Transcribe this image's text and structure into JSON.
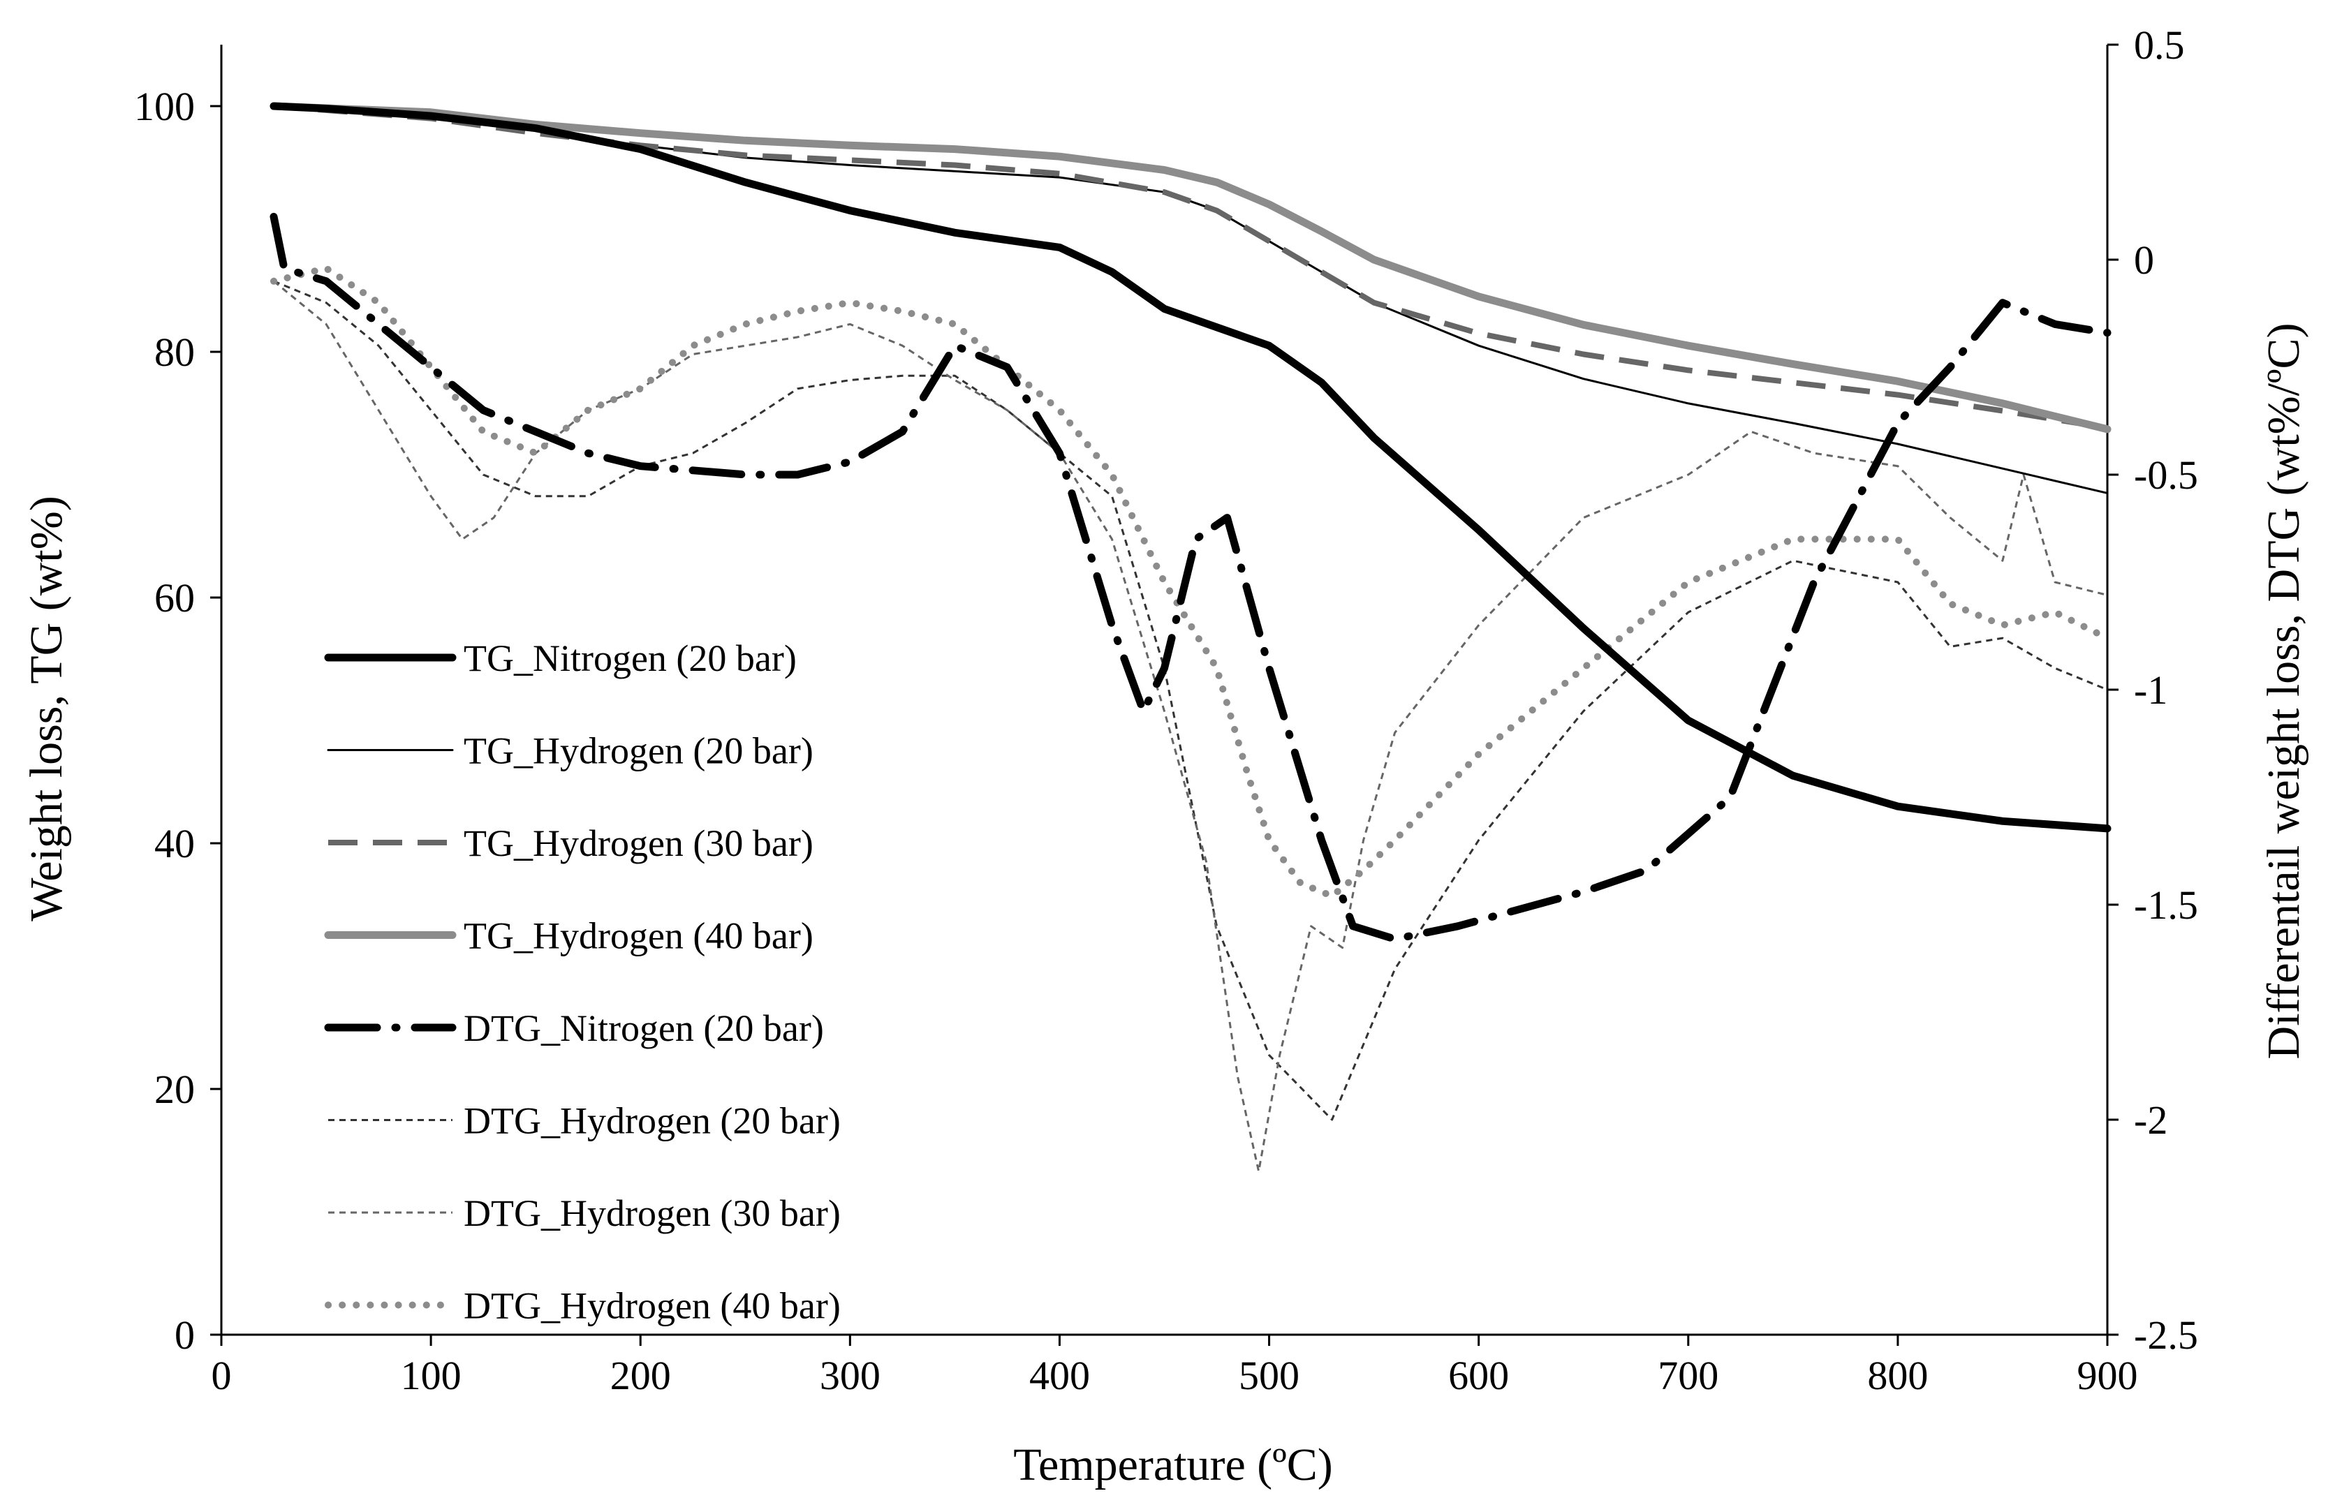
{
  "chart_data": {
    "type": "line",
    "title": "",
    "xlabel": "Temperature (ºC)",
    "ylabel_left": "Weight loss, TG (wt%)",
    "ylabel_right": "Differentail weight loss, DTG (wt%/ºC)",
    "xlim": [
      0,
      900
    ],
    "ylim_left": [
      0,
      105
    ],
    "ylim_right": [
      -2.5,
      0.5
    ],
    "x_ticks": [
      0,
      100,
      200,
      300,
      400,
      500,
      600,
      700,
      800,
      900
    ],
    "y_left_ticks": [
      0,
      20,
      40,
      60,
      80,
      100
    ],
    "y_right_ticks": [
      0.5,
      0,
      -0.5,
      -1,
      -1.5,
      -2,
      -2.5
    ],
    "y_right_tick_labels": [
      "0.5",
      "0",
      "-0.5",
      "-1",
      "-1.5",
      "-2",
      "-2.5"
    ],
    "grid": false,
    "legend_position": "left-middle",
    "series": [
      {
        "name": "TG_Nitrogen (20 bar)",
        "axis": "left",
        "color": "#000000",
        "style": "solid-thick",
        "x": [
          25,
          50,
          100,
          150,
          200,
          250,
          300,
          350,
          400,
          425,
          450,
          500,
          525,
          550,
          600,
          650,
          700,
          750,
          800,
          850,
          900
        ],
        "y": [
          100,
          99.8,
          99.2,
          98.2,
          96.5,
          93.8,
          91.5,
          89.7,
          88.5,
          86.5,
          83.5,
          80.5,
          77.5,
          73,
          65.5,
          57.5,
          50,
          45.5,
          43,
          41.8,
          41.2
        ]
      },
      {
        "name": "TG_Hydrogen (20 bar)",
        "axis": "left",
        "color": "#000000",
        "style": "solid-thin",
        "x": [
          25,
          100,
          150,
          200,
          250,
          300,
          350,
          400,
          450,
          475,
          500,
          525,
          550,
          600,
          650,
          700,
          750,
          800,
          850,
          900
        ],
        "y": [
          100,
          99.2,
          98,
          96.8,
          95.8,
          95.2,
          94.7,
          94.2,
          93,
          91.5,
          89,
          86.5,
          84,
          80.5,
          77.8,
          75.8,
          74.2,
          72.5,
          70.5,
          68.5
        ]
      },
      {
        "name": "TG_Hydrogen (30 bar)",
        "axis": "left",
        "color": "#666666",
        "style": "dashed",
        "x": [
          25,
          100,
          150,
          200,
          250,
          300,
          350,
          400,
          450,
          475,
          500,
          525,
          550,
          600,
          650,
          700,
          750,
          800,
          850,
          900
        ],
        "y": [
          100,
          99,
          97.8,
          96.8,
          96,
          95.6,
          95.2,
          94.5,
          93,
          91.5,
          89,
          86.5,
          84,
          81.5,
          79.8,
          78.5,
          77.5,
          76.5,
          75.2,
          73.8
        ]
      },
      {
        "name": "TG_Hydrogen (40 bar)",
        "axis": "left",
        "color": "#8c8c8c",
        "style": "solid-thick",
        "x": [
          25,
          100,
          150,
          200,
          250,
          300,
          350,
          400,
          450,
          475,
          500,
          525,
          550,
          600,
          650,
          700,
          750,
          800,
          850,
          900
        ],
        "y": [
          100,
          99.5,
          98.5,
          97.8,
          97.2,
          96.8,
          96.5,
          95.9,
          94.8,
          93.8,
          92,
          89.8,
          87.5,
          84.5,
          82.2,
          80.5,
          79,
          77.6,
          75.8,
          73.7
        ]
      },
      {
        "name": "DTG_Nitrogen (20 bar)",
        "axis": "right",
        "color": "#000000",
        "style": "dash-dot-thick",
        "x": [
          25,
          30,
          50,
          75,
          100,
          125,
          150,
          175,
          200,
          225,
          250,
          275,
          300,
          325,
          350,
          375,
          400,
          425,
          440,
          450,
          465,
          480,
          500,
          525,
          540,
          560,
          590,
          650,
          680,
          720,
          760,
          800,
          825,
          850,
          875,
          900
        ],
        "y": [
          0.1,
          -0.02,
          -0.05,
          -0.15,
          -0.25,
          -0.35,
          -0.4,
          -0.45,
          -0.48,
          -0.49,
          -0.5,
          -0.5,
          -0.47,
          -0.4,
          -0.2,
          -0.25,
          -0.45,
          -0.85,
          -1.05,
          -0.95,
          -0.65,
          -0.6,
          -0.95,
          -1.35,
          -1.55,
          -1.58,
          -1.55,
          -1.47,
          -1.42,
          -1.25,
          -0.75,
          -0.38,
          -0.25,
          -0.1,
          -0.15,
          -0.17
        ]
      },
      {
        "name": "DTG_Hydrogen (20 bar)",
        "axis": "right",
        "color": "#333333",
        "style": "fine-dash",
        "x": [
          25,
          50,
          75,
          100,
          125,
          150,
          175,
          200,
          225,
          250,
          275,
          300,
          325,
          350,
          375,
          400,
          425,
          450,
          475,
          500,
          530,
          560,
          600,
          650,
          700,
          750,
          800,
          825,
          850,
          875,
          900
        ],
        "y": [
          -0.05,
          -0.1,
          -0.2,
          -0.35,
          -0.5,
          -0.55,
          -0.55,
          -0.48,
          -0.45,
          -0.38,
          -0.3,
          -0.28,
          -0.27,
          -0.27,
          -0.35,
          -0.45,
          -0.55,
          -0.95,
          -1.55,
          -1.85,
          -2.0,
          -1.65,
          -1.35,
          -1.05,
          -0.82,
          -0.7,
          -0.75,
          -0.9,
          -0.88,
          -0.95,
          -1.0
        ]
      },
      {
        "name": "DTG_Hydrogen (30 bar)",
        "axis": "right",
        "color": "#666666",
        "style": "fine-dash",
        "x": [
          25,
          50,
          75,
          100,
          115,
          130,
          150,
          175,
          200,
          225,
          250,
          275,
          300,
          325,
          350,
          375,
          400,
          425,
          450,
          470,
          485,
          495,
          505,
          520,
          535,
          545,
          560,
          600,
          650,
          700,
          730,
          760,
          800,
          825,
          850,
          860,
          875,
          900
        ],
        "y": [
          -0.05,
          -0.15,
          -0.35,
          -0.55,
          -0.65,
          -0.6,
          -0.45,
          -0.35,
          -0.3,
          -0.22,
          -0.2,
          -0.18,
          -0.15,
          -0.2,
          -0.28,
          -0.35,
          -0.45,
          -0.65,
          -1.05,
          -1.4,
          -1.9,
          -2.12,
          -1.85,
          -1.55,
          -1.6,
          -1.35,
          -1.1,
          -0.85,
          -0.6,
          -0.5,
          -0.4,
          -0.45,
          -0.48,
          -0.6,
          -0.7,
          -0.5,
          -0.75,
          -0.78
        ]
      },
      {
        "name": "DTG_Hydrogen (40 bar)",
        "axis": "right",
        "color": "#8c8c8c",
        "style": "dotted",
        "x": [
          25,
          50,
          75,
          100,
          125,
          150,
          175,
          200,
          225,
          250,
          275,
          300,
          325,
          350,
          375,
          400,
          425,
          450,
          475,
          490,
          500,
          515,
          530,
          545,
          560,
          600,
          650,
          700,
          750,
          800,
          825,
          850,
          875,
          900
        ],
        "y": [
          -0.05,
          -0.02,
          -0.1,
          -0.25,
          -0.4,
          -0.45,
          -0.35,
          -0.3,
          -0.2,
          -0.15,
          -0.12,
          -0.1,
          -0.12,
          -0.15,
          -0.25,
          -0.35,
          -0.5,
          -0.75,
          -0.95,
          -1.2,
          -1.35,
          -1.45,
          -1.48,
          -1.42,
          -1.35,
          -1.15,
          -0.95,
          -0.75,
          -0.65,
          -0.65,
          -0.8,
          -0.85,
          -0.82,
          -0.88
        ]
      }
    ]
  }
}
